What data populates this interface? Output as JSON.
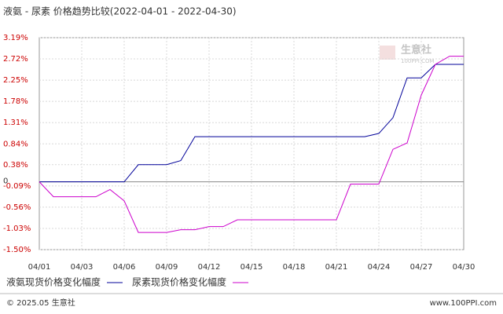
{
  "chart_data": {
    "type": "line",
    "title": "液氨 - 尿素  价格趋势比较(2022-04-01 - 2022-04-30)",
    "categories": [
      "04/01",
      null,
      null,
      "04/03",
      null,
      null,
      "04/06",
      null,
      null,
      "04/09",
      null,
      null,
      "04/12",
      null,
      null,
      "04/15",
      null,
      null,
      "04/18",
      null,
      null,
      "04/21",
      null,
      null,
      "04/24",
      null,
      null,
      "04/27",
      null,
      null,
      "04/30"
    ],
    "series": [
      {
        "name": "液氨现货价格变化幅度",
        "color": "#000099",
        "values": [
          0,
          0,
          0,
          0,
          0,
          0,
          0,
          0.38,
          0.38,
          0.38,
          0.47,
          1.0,
          1.0,
          1.0,
          1.0,
          1.0,
          1.0,
          1.0,
          1.0,
          1.0,
          1.0,
          1.0,
          1.0,
          1.0,
          1.07,
          1.42,
          2.3,
          2.3,
          2.6,
          2.6,
          2.6
        ]
      },
      {
        "name": "尿素现货价格变化幅度",
        "color": "#cc00cc",
        "values": [
          0,
          -0.33,
          -0.33,
          -0.33,
          -0.33,
          -0.17,
          -0.42,
          -1.12,
          -1.12,
          -1.12,
          -1.06,
          -1.06,
          -0.99,
          -0.99,
          -0.84,
          -0.84,
          -0.84,
          -0.84,
          -0.84,
          -0.84,
          -0.84,
          -0.84,
          -0.05,
          -0.05,
          -0.05,
          0.72,
          0.86,
          1.92,
          2.6,
          2.78,
          2.78
        ]
      }
    ],
    "ylim": [
      -1.5,
      3.19
    ],
    "yticks": [
      {
        "value": 3.19,
        "label": "3.19%"
      },
      {
        "value": 2.72,
        "label": "2.72%"
      },
      {
        "value": 2.25,
        "label": "2.25%"
      },
      {
        "value": 1.78,
        "label": "1.78%"
      },
      {
        "value": 1.31,
        "label": "1.31%"
      },
      {
        "value": 0.84,
        "label": "0.84%"
      },
      {
        "value": 0.38,
        "label": "0.38%"
      },
      0,
      {
        "value": -0.09,
        "label": "-0.09%"
      },
      {
        "value": -0.56,
        "label": "-0.56%"
      },
      {
        "value": -1.03,
        "label": "-1.03%"
      },
      {
        "value": -1.5,
        "label": "-1.50%"
      }
    ],
    "grid": true,
    "watermark": "生意社",
    "watermark_sub": "100PPI.COM",
    "copyright": "© 2025.05 生意社",
    "website": "www.100PPI.com"
  }
}
